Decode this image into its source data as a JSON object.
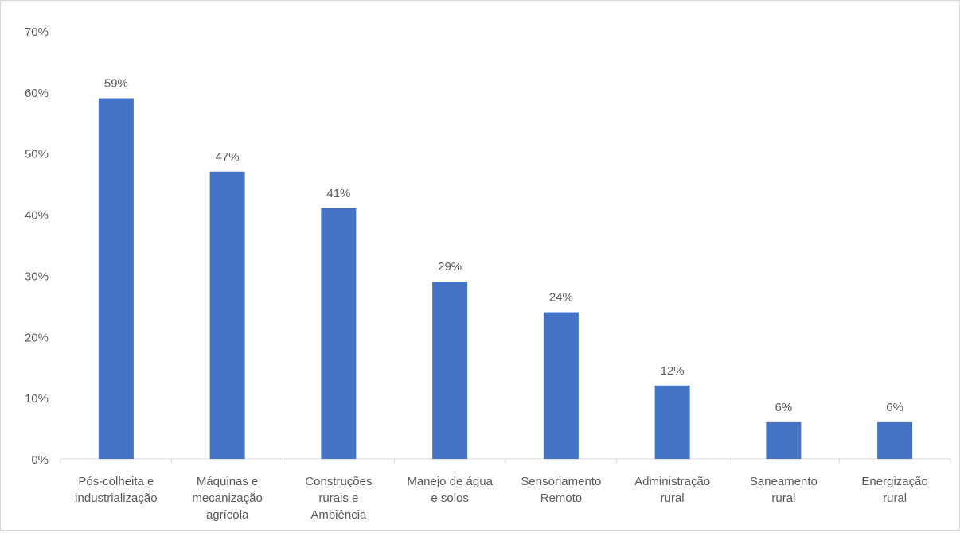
{
  "chart_data": {
    "type": "bar",
    "title": "",
    "xlabel": "",
    "ylabel": "",
    "categories": [
      [
        "Pós-colheita e",
        "industrialização"
      ],
      [
        "Máquinas e",
        "mecanização",
        "agrícola"
      ],
      [
        "Construções",
        "rurais e",
        "Ambiência"
      ],
      [
        "Manejo de água",
        "e solos"
      ],
      [
        "Sensoriamento",
        "Remoto"
      ],
      [
        "Administração",
        "rural"
      ],
      [
        "Saneamento",
        "rural"
      ],
      [
        "Energização",
        "rural"
      ]
    ],
    "values": [
      59,
      47,
      41,
      29,
      24,
      12,
      6,
      6
    ],
    "data_labels": [
      "59%",
      "47%",
      "41%",
      "29%",
      "24%",
      "12%",
      "6%",
      "6%"
    ],
    "ylim": [
      0,
      70
    ],
    "y_ticks": [
      0,
      10,
      20,
      30,
      40,
      50,
      60,
      70
    ],
    "y_tick_labels": [
      "0%",
      "10%",
      "20%",
      "30%",
      "40%",
      "50%",
      "60%",
      "70%"
    ],
    "grid": false,
    "legend": "none",
    "colors": {
      "bar": "#4472C4",
      "axis": "#d9d9d9",
      "text": "#595959"
    }
  }
}
